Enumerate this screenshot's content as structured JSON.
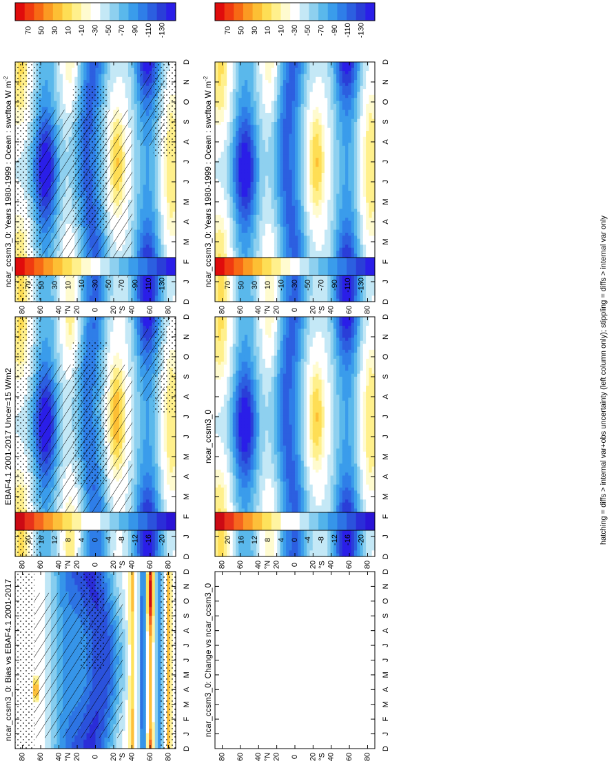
{
  "figure_note": "hatching = diffs > internal var+obs uncertainty (left column only); stippling = diffs > internal var only",
  "chart_data": [
    {
      "type": "heatmap",
      "title": "ncar_ccsm3_0: Years 1980-1999 : Ocean : swcftoa W m",
      "title_superscript": "-2",
      "months": [
        "D",
        "J",
        "F",
        "M",
        "A",
        "M",
        "J",
        "J",
        "A",
        "S",
        "O",
        "N",
        "D",
        "J"
      ],
      "lat_ticks": [
        "80",
        "60",
        "40",
        "20",
        "0",
        "20",
        "40",
        "60",
        "80"
      ],
      "lat_unit": "°",
      "lat_hemispheres": [
        "N",
        "S"
      ],
      "colorbar_ticks": [
        "70",
        "50",
        "30",
        "10",
        "-10",
        "-30",
        "-50",
        "-70",
        "-90",
        "-110",
        "-130"
      ],
      "hatching": true,
      "stippling": true
    },
    {
      "type": "heatmap",
      "title": "ncar_ccsm3_0: Years 1980-1999 : Ocean : swcftoa W m",
      "title_superscript": "-2",
      "months": [
        "D",
        "J",
        "F",
        "M",
        "A",
        "M",
        "J",
        "J",
        "A",
        "S",
        "O",
        "N",
        "D",
        "J"
      ],
      "lat_ticks": [
        "80",
        "60",
        "40",
        "20",
        "0",
        "20",
        "40",
        "60",
        "80"
      ],
      "lat_unit": "°",
      "lat_hemispheres": [
        "N",
        "S"
      ],
      "colorbar_ticks": [
        "70",
        "50",
        "30",
        "10",
        "-10",
        "-30",
        "-50",
        "-70",
        "-90",
        "-110",
        "-130"
      ],
      "hatching": false,
      "stippling": false
    },
    {
      "type": "heatmap",
      "title": "EBAF4.1 2001-2017 Uncer=15 W/m2",
      "title_superscript": "",
      "months": [
        "D",
        "J",
        "F",
        "M",
        "A",
        "M",
        "J",
        "J",
        "A",
        "S",
        "O",
        "N",
        "D",
        "J"
      ],
      "lat_ticks": [
        "80",
        "60",
        "40",
        "20",
        "0",
        "20",
        "40",
        "60",
        "80"
      ],
      "lat_unit": "°",
      "lat_hemispheres": [
        "N",
        "S"
      ],
      "colorbar_ticks": [
        "70",
        "50",
        "30",
        "10",
        "-10",
        "-30",
        "-50",
        "-70",
        "-90",
        "-110",
        "-130"
      ],
      "hatching": true,
      "stippling": true
    },
    {
      "type": "heatmap",
      "title": "ncar_ccsm3_0",
      "title_superscript": "",
      "months": [
        "D",
        "J",
        "F",
        "M",
        "A",
        "M",
        "J",
        "J",
        "A",
        "S",
        "O",
        "N",
        "D",
        "J"
      ],
      "lat_ticks": [
        "80",
        "60",
        "40",
        "20",
        "0",
        "20",
        "40",
        "60",
        "80"
      ],
      "lat_unit": "°",
      "lat_hemispheres": [
        "N",
        "S"
      ],
      "colorbar_ticks": [
        "70",
        "50",
        "30",
        "10",
        "-10",
        "-30",
        "-50",
        "-70",
        "-90",
        "-110",
        "-130"
      ],
      "hatching": false,
      "stippling": false
    },
    {
      "type": "heatmap",
      "title": "ncar_ccsm3_0: Bias vs EBAF4.1 2001-2017",
      "title_superscript": "",
      "months": [
        "D",
        "J",
        "F",
        "M",
        "A",
        "M",
        "J",
        "J",
        "A",
        "S",
        "O",
        "N",
        "D",
        "J"
      ],
      "lat_ticks": [
        "80",
        "60",
        "40",
        "20",
        "0",
        "20",
        "40",
        "60",
        "80"
      ],
      "lat_unit": "°",
      "lat_hemispheres": [
        "N",
        "S"
      ],
      "colorbar_ticks": [
        "20",
        "16",
        "12",
        "8",
        "4",
        "0",
        "-4",
        "-8",
        "-12",
        "-16",
        "-20"
      ],
      "hatching": true,
      "stippling": true
    },
    {
      "type": "heatmap",
      "title": "ncar_ccsm3_0: Change vs ncar_ccsm3_0",
      "title_superscript": "",
      "months": [
        "D",
        "J",
        "F",
        "M",
        "A",
        "M",
        "J",
        "J",
        "A",
        "S",
        "O",
        "N",
        "D",
        "J"
      ],
      "lat_ticks": [
        "80",
        "60",
        "40",
        "20",
        "0",
        "20",
        "40",
        "60",
        "80"
      ],
      "lat_unit": "°",
      "lat_hemispheres": [
        "N",
        "S"
      ],
      "colorbar_ticks": [
        "20",
        "16",
        "12",
        "8",
        "4",
        "0",
        "-4",
        "-8",
        "-12",
        "-16",
        "-20"
      ],
      "hatching": false,
      "stippling": false,
      "empty": true
    }
  ],
  "colors": {
    "clim_scale": [
      "#e00c0c",
      "#f03a10",
      "#f76914",
      "#fb9a22",
      "#fdbf34",
      "#fede55",
      "#fff08c",
      "#fffbcf",
      "#ffffff",
      "#c4e8f6",
      "#8ed0ef",
      "#5ab8eb",
      "#3a9ceb",
      "#2f7ee8",
      "#2c5fe0",
      "#2a3ed8",
      "#2a1ee8"
    ],
    "diff_scale": [
      "#cc0a14",
      "#e8321a",
      "#f6661e",
      "#fb9826",
      "#fdc03a",
      "#fee25c",
      "#fff4a0",
      "#ffffff",
      "#ffffff",
      "#bfe6f6",
      "#86cdef",
      "#52b3ea",
      "#3695e9",
      "#2d74e4",
      "#2b52dc",
      "#2a2dd8",
      "#2a14d6"
    ]
  }
}
